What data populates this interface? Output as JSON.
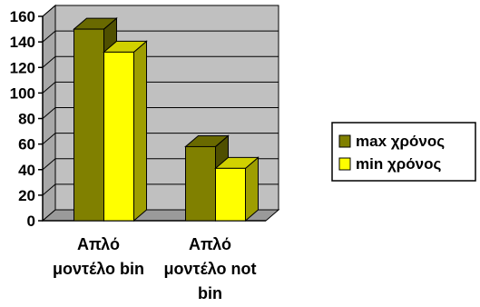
{
  "chart_data": {
    "type": "bar",
    "categories": [
      "Απλό μοντέλο bin",
      "Απλό μοντέλο not bin"
    ],
    "category_label_lines": [
      [
        "Απλό",
        "μοντέλο bin"
      ],
      [
        "Απλό",
        "μοντέλο not",
        "bin"
      ]
    ],
    "series": [
      {
        "name": "max χρόνος",
        "values": [
          150,
          58
        ],
        "color": "#808000"
      },
      {
        "name": "min χρόνος",
        "values": [
          132,
          41
        ],
        "color": "#ffff00"
      }
    ],
    "ylim": [
      0,
      160
    ],
    "yticks": [
      0,
      20,
      40,
      60,
      80,
      100,
      120,
      140,
      160
    ],
    "grid": true,
    "legend_position": "right",
    "three_d": true,
    "wall_color": "#c0c0c0"
  }
}
